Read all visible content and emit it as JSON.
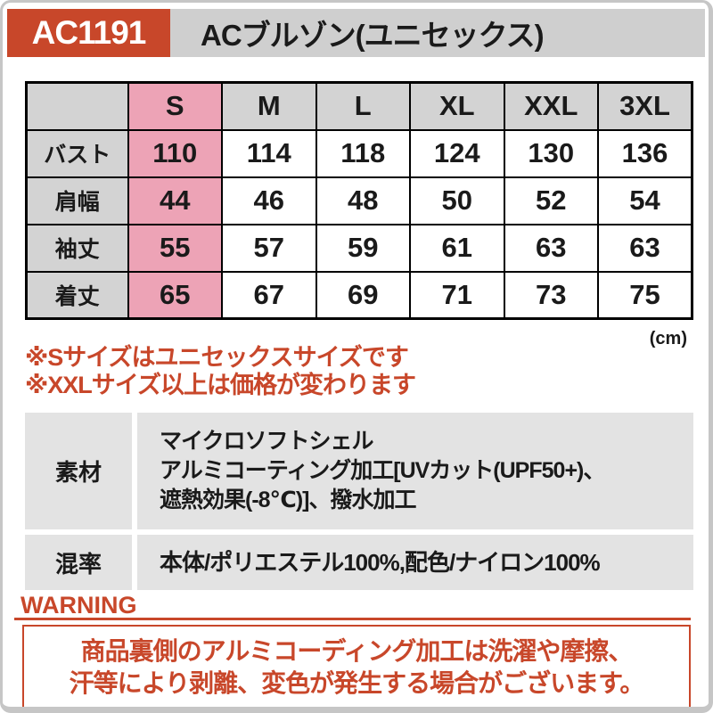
{
  "header": {
    "product_code": "AC1191",
    "product_name": "ACブルゾン(ユニセックス)"
  },
  "size_table": {
    "columns": [
      "S",
      "M",
      "L",
      "XL",
      "XXL",
      "3XL"
    ],
    "highlight_column": "S",
    "rows": [
      {
        "label": "バスト",
        "values": [
          "110",
          "114",
          "118",
          "124",
          "130",
          "136"
        ]
      },
      {
        "label": "肩幅",
        "values": [
          "44",
          "46",
          "48",
          "50",
          "52",
          "54"
        ]
      },
      {
        "label": "袖丈",
        "values": [
          "55",
          "57",
          "59",
          "61",
          "63",
          "63"
        ]
      },
      {
        "label": "着丈",
        "values": [
          "65",
          "67",
          "69",
          "71",
          "73",
          "75"
        ]
      }
    ],
    "unit_note": "(cm)"
  },
  "notes": [
    "※Sサイズはユニセックスサイズです",
    "※XXLサイズ以上は価格が変わります"
  ],
  "spec_table": {
    "rows": [
      {
        "label": "素材",
        "lines": [
          "マイクロソフトシェル",
          "アルミコーティング加工[UVカット(UPF50+)、",
          "遮熱効果(-8℃)]、撥水加工"
        ]
      },
      {
        "label": "混率",
        "lines": [
          "本体/ポリエステル100%,配色/ナイロン100%"
        ]
      }
    ]
  },
  "warning": {
    "title": "WARNING",
    "lines": [
      "商品裏側のアルミコーディング加工は洗濯や摩擦、",
      "汗等により剥離、変色が発生する場合がございます。"
    ]
  },
  "colors": {
    "accent_red": "#c8472a",
    "highlight_pink": "#eda3b6",
    "header_gray": "#cfcfcf",
    "cell_gray": "#d3d3d3",
    "spec_gray": "#e3e3e3",
    "frame_gray": "#c6c6c6"
  }
}
